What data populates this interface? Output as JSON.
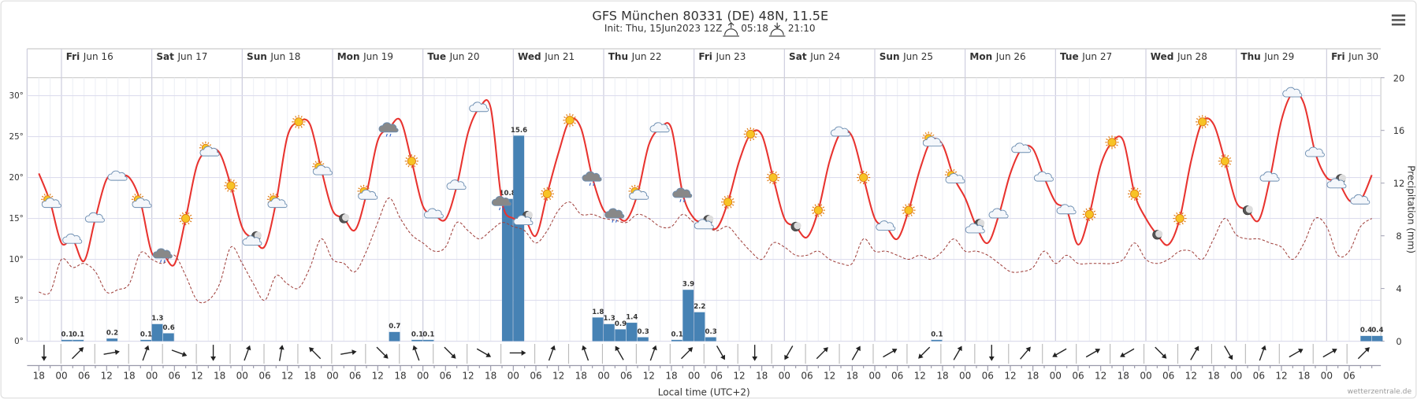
{
  "chart_data": {
    "type": "meteogram",
    "title": "GFS München 80331 (DE) 48N, 11.5E",
    "init": "Init: Thu, 15Jun2023 12Z",
    "sunrise": "05:18",
    "sunset": "21:10",
    "xlabel": "Local time (UTC+2)",
    "y2label": "Precipitation (mm)",
    "credit": "wetterzentrale.de",
    "days": [
      {
        "weekday": "Fri",
        "date": "Jun 16"
      },
      {
        "weekday": "Sat",
        "date": "Jun 17"
      },
      {
        "weekday": "Sun",
        "date": "Jun 18"
      },
      {
        "weekday": "Mon",
        "date": "Jun 19"
      },
      {
        "weekday": "Tue",
        "date": "Jun 20"
      },
      {
        "weekday": "Wed",
        "date": "Jun 21"
      },
      {
        "weekday": "Thu",
        "date": "Jun 22"
      },
      {
        "weekday": "Fri",
        "date": "Jun 23"
      },
      {
        "weekday": "Sat",
        "date": "Jun 24"
      },
      {
        "weekday": "Sun",
        "date": "Jun 25"
      },
      {
        "weekday": "Mon",
        "date": "Jun 26"
      },
      {
        "weekday": "Tue",
        "date": "Jun 27"
      },
      {
        "weekday": "Wed",
        "date": "Jun 28"
      },
      {
        "weekday": "Thu",
        "date": "Jun 29"
      },
      {
        "weekday": "Fri",
        "date": "Jun 30"
      }
    ],
    "categories": [
      "18",
      null,
      "00",
      null,
      "06",
      null,
      "12",
      null,
      "18",
      null,
      "00",
      null,
      "06",
      null,
      "12",
      null,
      "18",
      null,
      "00",
      null,
      "06",
      null,
      "12",
      null,
      "18",
      null,
      "00",
      null,
      "06",
      null,
      "12",
      null,
      "18",
      null,
      "00",
      null,
      "06",
      null,
      "12",
      null,
      "18",
      null,
      "00",
      null,
      "06",
      null,
      "12",
      null,
      "18",
      null,
      "00",
      null,
      "06",
      null,
      "12",
      null,
      "18",
      null,
      "00",
      null,
      "06",
      null,
      "12",
      null,
      "18",
      null,
      "00",
      null,
      "06",
      null,
      "12",
      null,
      "18",
      null,
      "00",
      null,
      "06",
      null,
      "12",
      null,
      "18",
      null,
      "00",
      null,
      "06",
      null,
      "12",
      null,
      "18",
      null,
      "00",
      null,
      "06",
      null,
      "12",
      null,
      "18",
      null,
      "00",
      null,
      "06",
      null,
      "12",
      null,
      "18",
      null,
      "00",
      null,
      "06",
      null,
      "12",
      null,
      "18",
      null,
      "00",
      null,
      "06",
      null,
      null
    ],
    "ylim": [
      0,
      32.2
    ],
    "yticks": [
      {
        "value": 0,
        "label": "0°"
      },
      {
        "value": 5,
        "label": "5°"
      },
      {
        "value": 10,
        "label": "10°"
      },
      {
        "value": 15,
        "label": "15°"
      },
      {
        "value": 20,
        "label": "20°"
      },
      {
        "value": 25,
        "label": "25°"
      },
      {
        "value": 30,
        "label": "30°"
      }
    ],
    "y2lim": [
      0,
      20
    ],
    "y2ticks": [
      0,
      4,
      8,
      12,
      16,
      20
    ],
    "grid": true,
    "series": [
      {
        "type": "line",
        "color": "#e8332f",
        "style": "solid",
        "values": [
          20.5,
          17,
          12,
          12.4,
          9.8,
          15,
          19.8,
          20.1,
          20,
          17,
          10.8,
          10.6,
          9.4,
          15,
          21.5,
          23.3,
          23,
          19,
          13.9,
          12.5,
          11.6,
          17,
          25,
          26.8,
          26.5,
          21,
          16,
          15,
          13.6,
          18,
          24.5,
          26,
          27,
          22,
          16.5,
          15.5,
          14.9,
          19,
          25.5,
          28.5,
          28.5,
          17,
          15,
          15,
          12.9,
          18,
          23,
          27,
          26,
          20,
          16,
          15.5,
          14.8,
          18,
          24,
          26,
          26,
          18,
          15,
          14.5,
          13.8,
          17,
          22,
          25.3,
          25.2,
          20,
          15,
          14,
          12.7,
          16,
          22,
          25.5,
          25,
          20,
          15,
          14,
          12.5,
          16,
          21,
          24.5,
          24,
          20,
          17.5,
          14,
          12,
          15.5,
          20.5,
          23.5,
          23.5,
          20,
          17,
          16,
          11.8,
          15.5,
          21.5,
          24.3,
          24.5,
          18,
          15,
          13,
          11.8,
          15,
          22,
          26.8,
          26.5,
          22,
          17,
          16,
          14.8,
          20,
          27,
          30.3,
          29,
          23,
          20,
          19.5,
          17.2,
          17.2,
          20.3
        ]
      },
      {
        "type": "line",
        "color": "#a0403c",
        "style": "dashed",
        "values": [
          6,
          6,
          10,
          9,
          9.5,
          8.5,
          6,
          6.3,
          7,
          10.8,
          10,
          9.5,
          10.5,
          8,
          5,
          5,
          7,
          11.5,
          9.5,
          7,
          5,
          8,
          7,
          6.5,
          9,
          12.5,
          10,
          9.5,
          8.5,
          11,
          14.5,
          17.5,
          15,
          13,
          12,
          11,
          11.5,
          14.5,
          13.5,
          12.5,
          13.5,
          14.5,
          14,
          13.5,
          12,
          13.5,
          16,
          17,
          15.5,
          15.5,
          15,
          14.8,
          14.5,
          15.5,
          15,
          14,
          14,
          15.5,
          14.5,
          14,
          13.5,
          14,
          12.5,
          11,
          10,
          12,
          11.5,
          10.5,
          10.5,
          11,
          10,
          9.5,
          9.5,
          12.5,
          11,
          11,
          10.5,
          10,
          10.5,
          10,
          11,
          12.5,
          11,
          11,
          10.5,
          9.5,
          8.5,
          8.5,
          9,
          11,
          9.5,
          10.5,
          9.5,
          9.5,
          9.5,
          9.5,
          10,
          12,
          10,
          9.5,
          10,
          11,
          11,
          10,
          12.5,
          15,
          13,
          12.5,
          12.5,
          12,
          11.5,
          10,
          12,
          15,
          14,
          10.5,
          11,
          14,
          15
        ]
      },
      {
        "type": "bar",
        "axis": "y2",
        "color": "#4682b4",
        "values": [
          0,
          0,
          0.1,
          0.1,
          0,
          0,
          0.2,
          0,
          0,
          0.1,
          1.3,
          0.6,
          0,
          0,
          0,
          0,
          0,
          0,
          0,
          0,
          0,
          0,
          0,
          0,
          0,
          0,
          0,
          0,
          0,
          0,
          0,
          0.7,
          0,
          0.1,
          0.1,
          0,
          0,
          0,
          0,
          0,
          0,
          10.8,
          15.6,
          0,
          0,
          0,
          0,
          0,
          0,
          1.8,
          1.3,
          0.9,
          1.4,
          0.3,
          0,
          0,
          0.1,
          3.9,
          2.2,
          0.3,
          0,
          0,
          0,
          0,
          0,
          0,
          0,
          0,
          0,
          0,
          0,
          0,
          0,
          0,
          0,
          0,
          0,
          0,
          0,
          0.1,
          0,
          0,
          0,
          0,
          0,
          0,
          0,
          0,
          0,
          0,
          0,
          0,
          0,
          0,
          0,
          0,
          0,
          0,
          0,
          0,
          0,
          0,
          0,
          0,
          0,
          0,
          0,
          0,
          0,
          0,
          0,
          0,
          0,
          0,
          0,
          0,
          0,
          0.4,
          0.4
        ]
      }
    ],
    "wind": [
      0,
      225,
      260,
      200,
      290,
      0,
      200,
      190,
      135,
      260,
      315,
      160,
      315,
      300,
      270,
      200,
      160,
      150,
      200,
      225,
      330,
      0,
      30,
      225,
      210,
      240,
      45,
      210,
      0,
      220,
      60,
      240,
      60,
      315,
      210,
      330,
      200,
      240,
      240,
      225
    ],
    "symbols": [
      "partly",
      "cloud",
      "cloud",
      "cloud",
      "partly",
      "rain",
      "sun",
      "partly",
      "sun",
      "moon-cloud",
      "partly",
      "sun",
      "partly",
      "moon",
      "partly",
      "rain",
      "sun",
      "cloud",
      "cloud",
      "cloud",
      "rain",
      "moon-cloud",
      "sun",
      "sun",
      "rain",
      "rain",
      "partly",
      "cloud",
      "rain",
      "moon-cloud",
      "sun",
      "sun",
      "sun",
      "moon",
      "sun",
      "cloud",
      "sun",
      "cloud",
      "sun",
      "partly",
      "partly",
      "moon-cloud",
      "cloud",
      "cloud",
      "cloud",
      "cloud",
      "sun",
      "sun",
      "sun",
      "moon",
      "sun",
      "sun",
      "sun",
      "moon",
      "cloud",
      "cloud",
      "cloud",
      "moon-cloud",
      "cloud"
    ]
  }
}
